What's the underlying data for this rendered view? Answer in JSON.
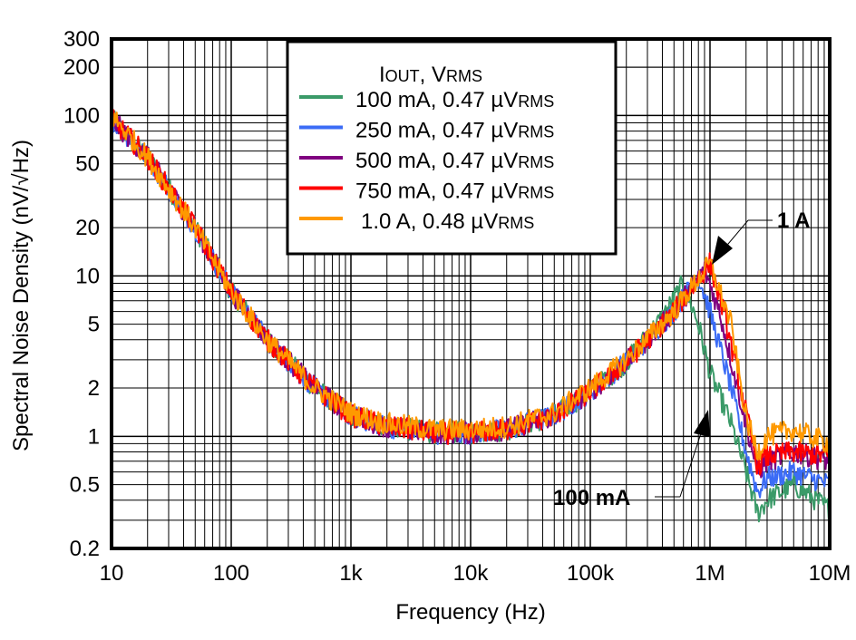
{
  "chart_data": {
    "type": "line",
    "xlabel": "Frequency (Hz)",
    "ylabel": "Spectral Noise Density (nV/√Hz)",
    "x_scale": "log",
    "y_scale": "log",
    "xlim": [
      10,
      10000000
    ],
    "ylim": [
      0.2,
      300
    ],
    "grid": true,
    "x_ticks": [
      {
        "value": 10,
        "label": "10"
      },
      {
        "value": 100,
        "label": "100"
      },
      {
        "value": 1000,
        "label": "1k"
      },
      {
        "value": 10000,
        "label": "10k"
      },
      {
        "value": 100000,
        "label": "100k"
      },
      {
        "value": 1000000,
        "label": "1M"
      },
      {
        "value": 10000000,
        "label": "10M"
      }
    ],
    "y_ticks": [
      {
        "value": 300,
        "label": "300"
      },
      {
        "value": 200,
        "label": "200"
      },
      {
        "value": 100,
        "label": "100"
      },
      {
        "value": 50,
        "label": "50"
      },
      {
        "value": 20,
        "label": "20"
      },
      {
        "value": 10,
        "label": "10"
      },
      {
        "value": 5,
        "label": "5"
      },
      {
        "value": 2,
        "label": "2"
      },
      {
        "value": 1,
        "label": "1"
      },
      {
        "value": 0.5,
        "label": "0.5"
      },
      {
        "value": 0.2,
        "label": "0.2"
      }
    ],
    "legend": {
      "placement": "top-center",
      "title_main": "I",
      "title_sub1": "OUT",
      "title_mid": ", V",
      "title_sub2": "RMS"
    },
    "series": [
      {
        "name": "100 mA, 0.47 µV",
        "name_sub": "RMS",
        "color": "#3a9a68",
        "x": [
          10,
          20,
          50,
          100,
          200,
          500,
          1000,
          2000,
          5000,
          10000,
          20000,
          50000,
          100000,
          200000,
          400000,
          600000,
          800000,
          1000000,
          1500000,
          2000000,
          2500000,
          3000000,
          5000000,
          10000000
        ],
        "y": [
          95,
          55,
          20,
          8,
          4,
          2,
          1.35,
          1.15,
          1.05,
          1.05,
          1.1,
          1.35,
          1.9,
          2.9,
          5.5,
          9,
          5,
          2.5,
          1.2,
          0.6,
          0.33,
          0.4,
          0.5,
          0.35
        ]
      },
      {
        "name": "250 mA, 0.47 µV",
        "name_sub": "RMS",
        "color": "#3b6cf6",
        "x": [
          10,
          20,
          50,
          100,
          200,
          500,
          1000,
          2000,
          5000,
          10000,
          20000,
          50000,
          100000,
          200000,
          500000,
          800000,
          1000000,
          1500000,
          2000000,
          2500000,
          3000000,
          5000000,
          10000000
        ],
        "y": [
          95,
          55,
          20,
          8,
          4,
          2,
          1.35,
          1.15,
          1.05,
          1.05,
          1.1,
          1.35,
          1.9,
          2.9,
          6,
          10,
          6,
          2,
          0.8,
          0.45,
          0.55,
          0.6,
          0.5
        ]
      },
      {
        "name": "500 mA, 0.47 µV",
        "name_sub": "RMS",
        "color": "#800080",
        "x": [
          10,
          20,
          50,
          100,
          200,
          500,
          1000,
          2000,
          5000,
          10000,
          20000,
          50000,
          100000,
          200000,
          500000,
          900000,
          1200000,
          2000000,
          2500000,
          3000000,
          5000000,
          10000000
        ],
        "y": [
          95,
          55,
          20,
          8,
          4,
          2,
          1.35,
          1.15,
          1.05,
          1.05,
          1.1,
          1.35,
          1.9,
          2.9,
          6,
          11,
          6,
          1.2,
          0.6,
          0.7,
          0.8,
          0.7
        ]
      },
      {
        "name": "750 mA, 0.47 µV",
        "name_sub": "RMS",
        "color": "#ff0000",
        "x": [
          10,
          20,
          50,
          100,
          200,
          500,
          1000,
          2000,
          5000,
          10000,
          20000,
          50000,
          100000,
          200000,
          500000,
          1000000,
          1300000,
          2000000,
          2500000,
          3000000,
          5000000,
          10000000
        ],
        "y": [
          95,
          55,
          20,
          8,
          4,
          2,
          1.35,
          1.15,
          1.05,
          1.05,
          1.1,
          1.35,
          1.9,
          2.9,
          6,
          12,
          6,
          1.4,
          0.65,
          0.75,
          0.8,
          0.75
        ]
      },
      {
        "name": " 1.0 A, 0.48 µV",
        "name_sub": "RMS",
        "color": "#ff9900",
        "x": [
          10,
          20,
          50,
          100,
          200,
          500,
          1000,
          2000,
          5000,
          10000,
          20000,
          50000,
          100000,
          200000,
          500000,
          1000000,
          1500000,
          2000000,
          2500000,
          3000000,
          5000000,
          10000000
        ],
        "y": [
          100,
          55,
          20,
          8,
          4,
          2,
          1.4,
          1.2,
          1.1,
          1.1,
          1.15,
          1.4,
          2,
          3,
          6,
          12,
          5,
          1.3,
          0.8,
          1,
          1.1,
          0.9
        ]
      }
    ],
    "annotations": [
      {
        "text": "1 A",
        "x": 1000000,
        "y": 12
      },
      {
        "text": "100 mA",
        "x": 1000000,
        "y": 2.5
      }
    ]
  }
}
